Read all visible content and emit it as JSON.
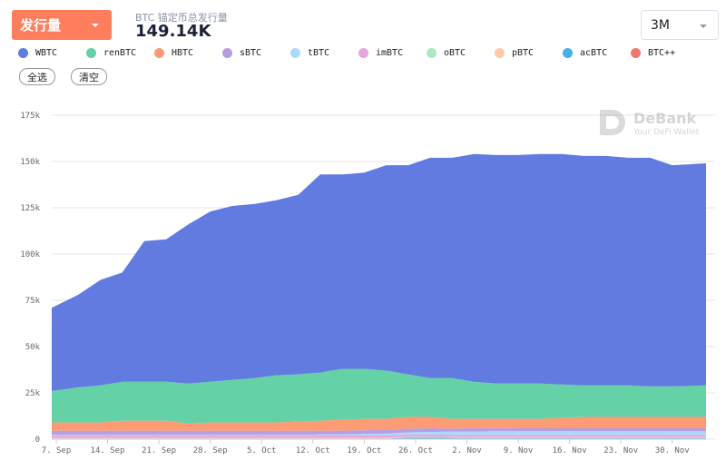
{
  "header": {
    "metric_label": "发行量",
    "subtitle": "BTC 锚定币总发行量",
    "total": "149.14K",
    "range": "3M"
  },
  "buttons": {
    "select_all": "全选",
    "clear": "清空"
  },
  "watermark": {
    "brand": "DeBank",
    "tagline": "Your DeFi Wallet"
  },
  "chart_data": {
    "type": "area",
    "stacked": true,
    "x_start": "2020-09-07",
    "x_step_days": 3,
    "xticks": [
      "7. Sep",
      "14. Sep",
      "21. Sep",
      "28. Sep",
      "5. Oct",
      "12. Oct",
      "19. Oct",
      "26. Oct",
      "2. Nov",
      "9. Nov",
      "16. Nov",
      "23. Nov",
      "30. Nov"
    ],
    "yticks": [
      "0",
      "25k",
      "50k",
      "75k",
      "100k",
      "125k",
      "150k",
      "175k"
    ],
    "ylim": [
      0,
      175
    ],
    "unit": "k BTC",
    "legend": "top",
    "series": [
      {
        "name": "WBTC",
        "color": "#627be0",
        "values": [
          45,
          50,
          57,
          59,
          76,
          77,
          86,
          92,
          94,
          94,
          94.5,
          97,
          107,
          105,
          106,
          111,
          113,
          119,
          119,
          123,
          123.5,
          123.5,
          124,
          124.5,
          124,
          124,
          123,
          123.5,
          119.5,
          120
        ]
      },
      {
        "name": "renBTC",
        "color": "#65d1a6",
        "values": [
          17,
          19,
          20,
          21,
          21,
          21,
          21.5,
          22,
          23,
          24,
          25.5,
          25.5,
          26,
          27.5,
          27,
          26,
          23,
          21,
          22,
          20,
          19,
          19,
          19,
          18,
          17,
          17,
          17,
          16.5,
          16.5,
          17
        ]
      },
      {
        "name": "HBTC",
        "color": "#fd9b74",
        "values": [
          4.5,
          4.5,
          4.5,
          5.5,
          5.5,
          5.5,
          4,
          4.5,
          4.5,
          4.5,
          4.5,
          5,
          5.5,
          5.9,
          6.2,
          6,
          6.3,
          6.1,
          5.2,
          5.1,
          4.9,
          5.1,
          5.1,
          5.6,
          6.1,
          6.1,
          6.1,
          6.1,
          6.1,
          6.1
        ]
      },
      {
        "name": "sBTC",
        "color": "#b79ee0",
        "values": [
          2.2,
          2.2,
          2.2,
          2.2,
          2.2,
          2.2,
          2.2,
          2.2,
          2.2,
          2.2,
          2.2,
          2.2,
          2,
          2,
          2,
          2,
          2,
          2,
          1.8,
          1.8,
          1.8,
          1.6,
          1.6,
          1.6,
          1.6,
          1.6,
          1.6,
          1.6,
          1.6,
          1.6
        ]
      },
      {
        "name": "tBTC",
        "color": "#a8dbf8",
        "values": [
          0.3,
          0.3,
          0.3,
          0.3,
          0.3,
          0.3,
          0.3,
          0.3,
          0.3,
          0.3,
          0.3,
          0.3,
          0.5,
          0.6,
          0.8,
          1,
          1.2,
          1.4,
          1.6,
          1.8,
          2,
          2,
          2,
          2,
          2,
          2,
          2,
          2,
          2,
          2
        ]
      },
      {
        "name": "imBTC",
        "color": "#e8a3e5",
        "values": [
          1.2,
          1.2,
          1.2,
          1.2,
          1.2,
          1.2,
          1.2,
          1.2,
          1.2,
          1.2,
          1.2,
          1.2,
          1.2,
          1.2,
          1.2,
          1.2,
          1.2,
          1.2,
          1.2,
          1.2,
          1.2,
          1.2,
          1.2,
          1.2,
          1.2,
          1.2,
          1.2,
          1.2,
          1.2,
          1.2
        ]
      },
      {
        "name": "oBTC",
        "color": "#ade6c1",
        "values": [
          0.3,
          0.3,
          0.3,
          0.3,
          0.3,
          0.3,
          0.3,
          0.3,
          0.3,
          0.3,
          0.3,
          0.3,
          0.3,
          0.3,
          0.3,
          0.3,
          0.3,
          0.3,
          0.3,
          0.3,
          0.3,
          0.3,
          0.3,
          0.3,
          0.3,
          0.3,
          0.3,
          0.3,
          0.3,
          0.3
        ]
      },
      {
        "name": "pBTC",
        "color": "#ffc9a8",
        "values": [
          0.2,
          0.2,
          0.2,
          0.2,
          0.2,
          0.2,
          0.2,
          0.2,
          0.2,
          0.2,
          0.2,
          0.2,
          0.2,
          0.2,
          0.2,
          0.2,
          0.2,
          0.2,
          0.2,
          0.2,
          0.2,
          0.2,
          0.2,
          0.2,
          0.2,
          0.2,
          0.2,
          0.2,
          0.2,
          0.2
        ]
      },
      {
        "name": "acBTC",
        "color": "#46b1e6",
        "values": [
          0,
          0,
          0,
          0,
          0,
          0,
          0,
          0,
          0,
          0,
          0,
          0,
          0,
          0,
          0,
          0,
          0.5,
          0.5,
          0.4,
          0.3,
          0.3,
          0.3,
          0.3,
          0.3,
          0.3,
          0.3,
          0.3,
          0.3,
          0.3,
          0.3
        ]
      },
      {
        "name": "BTC++",
        "color": "#f47670",
        "values": [
          0.3,
          0.3,
          0.3,
          0.3,
          0.3,
          0.3,
          0.3,
          0.3,
          0.3,
          0.3,
          0.3,
          0.3,
          0.3,
          0.3,
          0.3,
          0.3,
          0.3,
          0.3,
          0.3,
          0.3,
          0.3,
          0.3,
          0.3,
          0.3,
          0.3,
          0.3,
          0.3,
          0.3,
          0.3,
          0.3
        ]
      }
    ]
  }
}
